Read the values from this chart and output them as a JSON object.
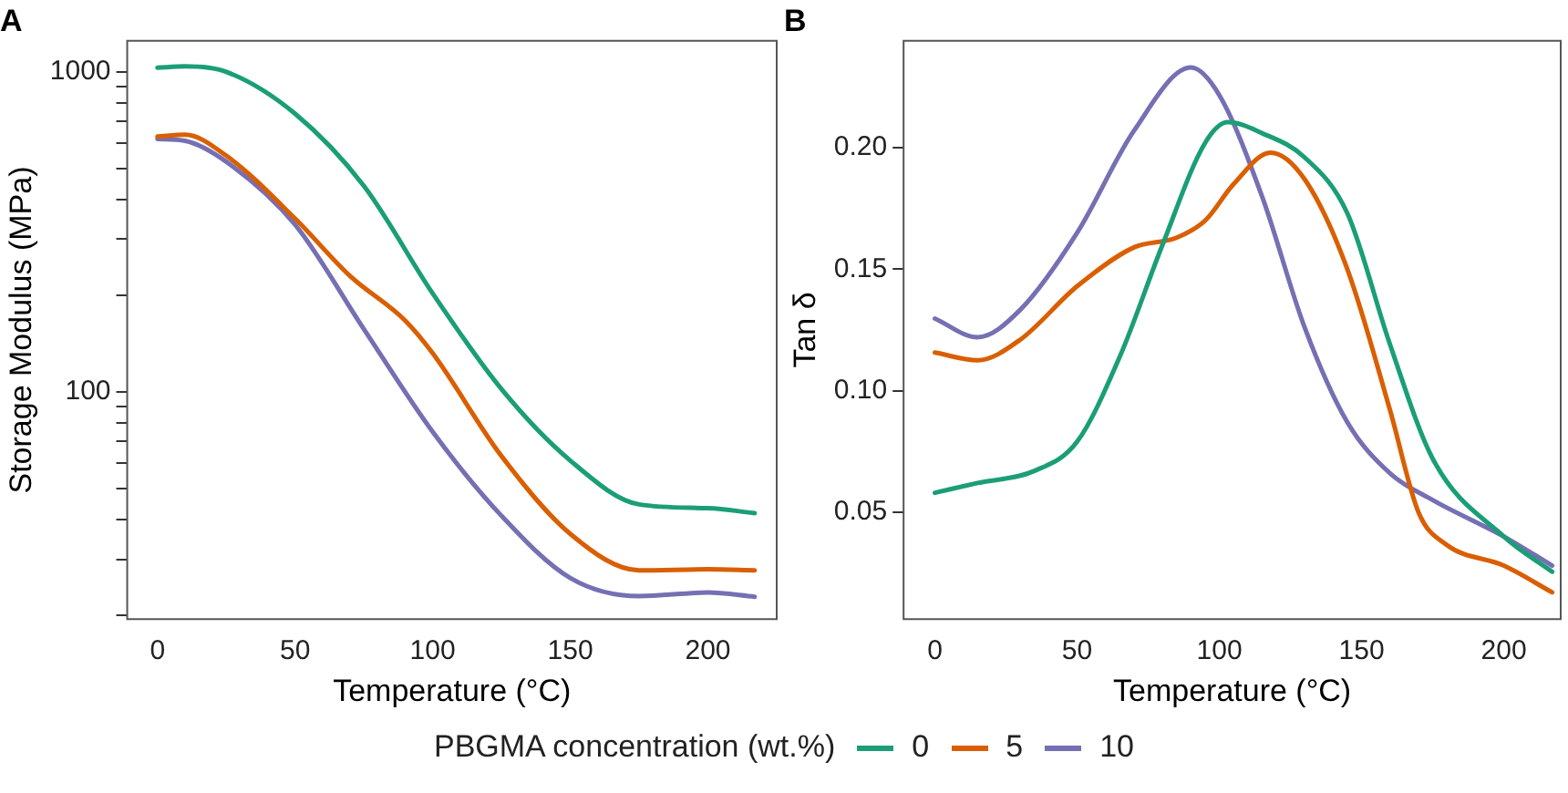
{
  "chart_data": [
    {
      "type": "line",
      "title": "A",
      "xlabel": "Temperature (°C)",
      "ylabel": "Storage Modulus (MPa)",
      "log": "y",
      "legend": "bottom",
      "legend_title": "PBGMA concentration (wt.%)",
      "xlim": [
        -11,
        225
      ],
      "xticks": [
        0,
        50,
        100,
        150,
        200
      ],
      "ylim": [
        19.5,
        1250
      ],
      "yticks": [
        {
          "value": 20,
          "label": null
        },
        {
          "value": 30,
          "label": null
        },
        {
          "value": 40,
          "label": null
        },
        {
          "value": 50,
          "label": null
        },
        {
          "value": 60,
          "label": null
        },
        {
          "value": 70,
          "label": null
        },
        {
          "value": 80,
          "label": null
        },
        {
          "value": 90,
          "label": null
        },
        100,
        {
          "value": 200,
          "label": null
        },
        {
          "value": 300,
          "label": null
        },
        {
          "value": 400,
          "label": null
        },
        {
          "value": 500,
          "label": null
        },
        {
          "value": 600,
          "label": null
        },
        {
          "value": 700,
          "label": null
        },
        {
          "value": 800,
          "label": null
        },
        {
          "value": 900,
          "label": null
        },
        1000
      ],
      "x": [
        0,
        10,
        25,
        50,
        75,
        100,
        125,
        150,
        175,
        200,
        217
      ],
      "series": [
        {
          "name": "0",
          "color": "#1b9e77",
          "values": [
            1030,
            1040,
            1000,
            740,
            440,
            203,
            102,
            61,
            44.5,
            43.3,
            41.8
          ]
        },
        {
          "name": "5",
          "color": "#d95f02",
          "x": [
            0,
            10,
            25,
            50,
            70,
            90,
            100,
            125,
            150,
            175,
            200,
            217
          ],
          "values": [
            628,
            636,
            547,
            348,
            230,
            167,
            132,
            63,
            36,
            27.7,
            27.9,
            27.7
          ]
        },
        {
          "name": "10",
          "color": "#7570b3",
          "values": [
            617,
            609,
            524,
            333,
            157,
            75,
            41,
            26.2,
            23,
            23.6,
            22.9
          ]
        }
      ]
    },
    {
      "type": "line",
      "title": "B",
      "xlabel": "Temperature (°C)",
      "ylabel": "Tan δ",
      "xlim": [
        -11,
        220
      ],
      "xticks": [
        0,
        50,
        100,
        150,
        200
      ],
      "ylim": [
        0.006,
        0.244
      ],
      "yticks": [
        0.05,
        {
          "value": 0.1,
          "label": "0.10"
        },
        0.15,
        {
          "value": 0.2,
          "label": "0.20"
        }
      ],
      "series": [
        {
          "name": "0",
          "color": "#1b9e77",
          "x": [
            0,
            15,
            35,
            50,
            65,
            80,
            95,
            103,
            115,
            130,
            145,
            160,
            175,
            200,
            217
          ],
          "values": [
            0.058,
            0.062,
            0.067,
            0.079,
            0.114,
            0.16,
            0.202,
            0.2105,
            0.206,
            0.196,
            0.173,
            0.119,
            0.072,
            0.04,
            0.0255
          ]
        },
        {
          "name": "5",
          "color": "#d95f02",
          "x": [
            0,
            15,
            30,
            50,
            70,
            85,
            95,
            105,
            118,
            130,
            145,
            160,
            170,
            180,
            200,
            217
          ],
          "values": [
            0.1157,
            0.1125,
            0.121,
            0.143,
            0.159,
            0.163,
            0.17,
            0.185,
            0.198,
            0.187,
            0.15,
            0.092,
            0.05,
            0.0365,
            0.028,
            0.017
          ]
        },
        {
          "name": "10",
          "color": "#7570b3",
          "x": [
            0,
            15,
            30,
            50,
            70,
            90,
            100,
            115,
            130,
            145,
            160,
            175,
            200,
            217
          ],
          "values": [
            0.1297,
            0.122,
            0.1333,
            0.165,
            0.207,
            0.233,
            0.2216,
            0.18,
            0.126,
            0.087,
            0.066,
            0.055,
            0.04,
            0.028
          ]
        }
      ]
    }
  ]
}
